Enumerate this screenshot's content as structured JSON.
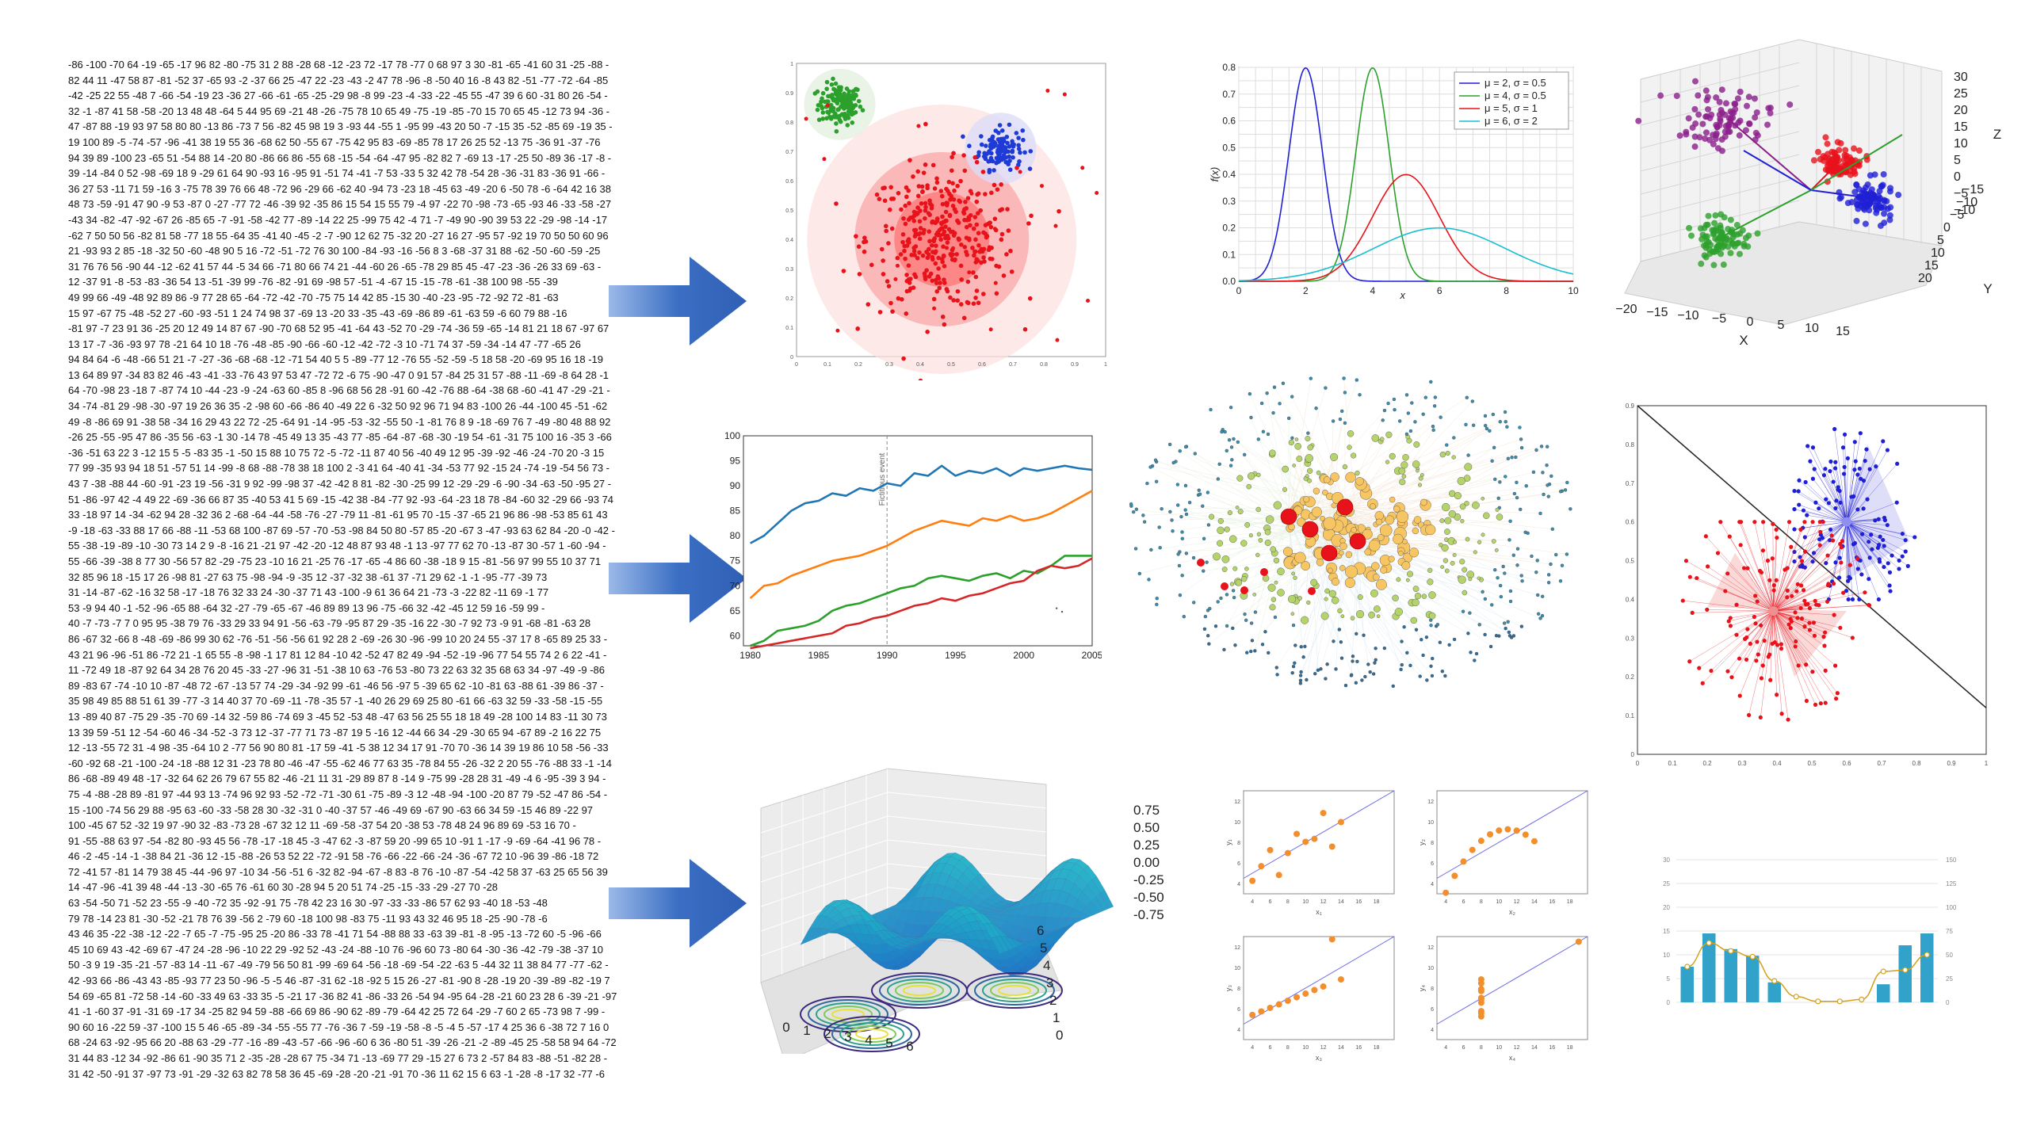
{
  "colors": {
    "arrow": "#3b6fc4",
    "blue": "#1f77b4",
    "orange": "#ff7f0e",
    "green": "#2ca02c",
    "red": "#d62728",
    "cyan": "#17becf",
    "teal": "#31a2c9"
  },
  "icons": [
    "arrow-right-icon",
    "arrow-right-icon",
    "arrow-right-icon"
  ],
  "text_block": {
    "lines": [
      "-86 -100 -70 64 -19 -65 -17 96 82 -80 -75 31 2 88 -28 68 -12 -23 72 -17 78 -77 0 68 97 3 30 -81 -65 -41 60 31 -25 -88 -",
      "82 44 11 -47 58 87 -81 -52 37 -65 93 -2 -37 66 25 -47 22 -23 -43 -2 47 78 -96 -8 -50 40 16 -8 43 82 -51 -77 -72 -64 -85",
      "-42 -25 22 55 -48 7 -66 -54 -19 23 -36 27 -66 -61 -65 -25 -29 98 -8 99 -23 -4 -33 -22 -45 55 -47 39 6 60 -31 80 26 -54 -",
      "32 -1 -87 41 58 -58 -20 13 48 48 -64 5 44 95 69 -21 48 -26 -75 78 10 65 49 -75 -19 -85 -70 15 70 65 45 -12 73 94 -36 -",
      "47 -87 88 -19 93 97 58 80 80 -13 86 -73 7 56 -82 45 98 19 3 -93 44 -55 1 -95 99 -43 20 50 -7 -15 35 -52 -85 69 -19 35 -",
      "19 100 89 -5 -74 -57 -96 -41 38 19 55 36 -68 62 50 -55 67 -75 42 95 83 -69 -85 78 17 26 25 52 -13 75 -36 91 -37 -76",
      "94 39 89 -100 23 -65 51 -54 88 14 -20 80 -86 66 86 -55 68 -15 -54 -64 -47 95 -82 82 7 -69 13 -17 -25 50 -89 36 -17 -8 -",
      "39 -14 -84 0 52 -98 -69 18 9 -29 61 64 90 -93 16 -95 91 -51 74 -41 -7 53 -33 5 32 42 78 -54 28 -36 -31 83 -36 91 -66 -",
      "36 27 53 -11 71 59 -16 3 -75 78 39 76 66 48 -72 96 -29 66 -62 40 -94 73 -23 18 -45 63 -49 -20 6 -50 78 -6 -64 42 16 38",
      "48 73 -59 -91 47 90 -9 53 -87 0 -27 -77 72 -46 -39 92 -35 86 15 54 15 55 79 -4 97 -22 70 -98 -73 -65 -93 46 -33 -58 -27",
      "-43 34 -82 -47 -92 -67 26 -85 65 -7 -91 -58 -42 77 -89 -14 22 25 -99 75 42 -4 71 -7 -49 90 -90 39 53 22 -29 -98 -14 -17",
      "-62 7 50 50 56 -82 81 58 -77 18 55 -64 35 -41 40 -45 -2 -7 -90 12 62 75 -32 20 -27 16 27 -95 57 -92 19 70 50 50 60 96",
      "21 -93 93 2 85 -18 -32 50 -60 -48 90 5 16 -72 -51 -72 76 30 100 -84 -93 -16 -56 8 3 -68 -37 31 88 -62 -50 -60 -59 -25",
      "31 76 76 56 -90 44 -12 -62 41 57 44 -5 34 66 -71 80 66 74 21 -44 -60 26 -65 -78 29 85 45 -47 -23 -36 -26 33 69 -63 -",
      "12 -37 91 -8 -53 -83 -36 54 13 -51 -39 99 -76 -82 -91 69 -98 57 -51 -4 -67 15 -15 -78 -61 -38 100 98 -55 -39",
      "49 99 66 -49 -48 92 89 86 -9 77 28 65 -64 -72 -42 -70 -75 75 14 42 85 -15 30 -40 -23 -95 -72 -92 72 -81 -63",
      "15 97 -67 75 -48 -52 27 -60 -93 -51 1 24 74 98 37 -69 13 -20 33 -35 -43 -69 -86 89 -61 -63 59 -6 60 79 88 -16",
      "-81 97 -7 23 91 36 -25 20 12 49 14 87 67 -90 -70 68 52 95 -41 -64 43 -52 70 -29 -74 -36 59 -65 -14 81 21 18 67 -97 67",
      "13 17 -7 -36 -93 97 78 -21 64 10 18 -76 -48 -85 -90 -66 -60 -12 -42 -72 -3 10 -71 74 37 -59 -34 -14 47 -77 -65 26",
      "94 84 64 -6 -48 -66 51 21 -7 -27 -36 -68 -68 -12 -71 54 40 5 5 -89 -77 12 -76 55 -52 -59 -5 18 58 -20 -69 95 16 18 -19",
      "13 64 89 97 -34 83 82 46 -43 -41 -33 -76 43 97 53 47 -72 72 -6 75 -90 -47 0 91 57 -84 25 31 57 -88 -11 -69 -8 64 28 -1",
      "64 -70 -98 23 -18 7 -87 74 10 -44 -23 -9 -24 -63 60 -85 8 -96 68 56 28 -91 60 -42 -76 88 -64 -38 68 -60 -41 47 -29 -21 -",
      "34 -74 -81 29 -98 -30 -97 19 26 36 35 -2 -98 60 -66 -86 40 -49 22 6 -32 50 92 96 71 94 83 -100 26 -44 -100 45 -51 -62",
      "49 -8 -86 69 91 -38 58 -34 16 29 43 22 72 -25 -64 91 -14 -95 -53 -32 -55 50 -1 -81 76 8 9 -18 -69 76 7 -49 -80 48 88 92",
      "-26 25 -55 -95 47 86 -35 56 -63 -1 30 -14 78 -45 49 13 35 -43 77 -85 -64 -87 -68 -30 -19 54 -61 -31 75 100 16 -35 3 -66",
      "-36 -51 63 22 3 -12 15 5 -5 -83 35 -1 -50 15 88 10 75 72 -5 -72 -11 87 40 56 -40 49 12 95 -39 -92 -46 -24 -70 20 -3 15",
      "77 99 -35 93 94 18 51 -57 51 14 -99 -8 68 -88 -78 38 18 100 2 -3 41 64 -40 41 -34 -53 77 92 -15 24 -74 -19 -54 56 73 -",
      "43 7 -38 -88 44 -60 -91 -23 19 -56 -31 9 92 -99 -98 37 -42 -42 8 81 -82 -30 -25 99 12 -29 -29 -6 -90 -34 -63 -50 -95 27 -",
      "51 -86 -97 42 -4 49 22 -69 -36 66 87 35 -40 53 41 5 69 -15 -42 38 -84 -77 92 -93 -64 -23 18 78 -84 -60 32 -29 66 -93 74",
      "33 -18 97 14 -34 -62 94 28 -32 36 2 -68 -64 -44 -58 -76 -27 -79 11 -81 -61 95 70 -15 -37 -65 21 96 86 -98 -53 85 61 43",
      "-9 -18 -63 -33 88 17 66 -88 -11 -53 68 100 -87 69 -57 -70 -53 -98 84 50 80 -57 85 -20 -67 3 -47 -93 63 62 84 -20 -0 -42 -",
      "55 -38 -19 -89 -10 -30 73 14 2 9 -8 -16 21 -21 97 -42 -20 -12 48 87 93 48 -1 13 -97 77 62 70 -13 -87 30 -57 1 -60 -94 -",
      "55 -66 -39 -38 8 77 30 -56 57 82 -29 -75 23 -10 16 21 -25 76 -17 -65 -4 86 60 -38 -18 9 15 -81 -56 97 99 55 10 37 71",
      "32 85 96 18 -15 17 26 -98 81 -27 63 75 -98 -94 -9 -35 12 -37 -32 38 -61 37 -71 29 62 -1 -1 -95 -77 -39 73",
      "31 -14 -87 -62 -16 32 58 -17 -18 76 32 33 24 -30 -37 71 43 -100 -9 61 36 64 21 -73 -3 -22 82 -11 69 -1 77",
      "53 -9 94 40 -1 -52 -96 -65 88 -64 32 -27 -79 -65 -67 -46 89 89 13 96 -75 -66 32 -42 -45 12 59 16 -59 99 -",
      "40 -7 -73 -7 7 0 95 95 -38 79 76 -33 29 33 94 91 -56 -63 -79 -95 87 29 -35 -16 22 -30 -7 92 73 -9 91 -68 -81 -63 28",
      "86 -67 32 -66 8 -48 -69 -86 99 30 62 -76 -51 -56 -56 61 92 28 2 -69 -26 30 -96 -99 10 20 24 55 -37 17 8 -65 89 25 33 -",
      "43 21 96 -96 -51 86 -72 21 -1 65 55 -8 -98 -1 17 81 12 84 -10 42 -52 47 82 49 -94 -52 -19 -96 77 54 55 74 2 6 22 -41 -",
      "11 -72 49 18 -87 92 64 34 28 76 20 45 -33 -27 -96 31 -51 -38 10 63 -76 53 -80 73 22 63 32 35 68 63 34 -97 -49 -9 -86",
      "89 -83 67 -74 -10 10 -87 -48 72 -67 -13 57 74 -29 -34 -92 99 -61 -46 56 -97 5 -39 65 62 -10 -81 63 -88 61 -39 86 -37 -",
      "35 98 49 85 88 51 61 39 -77 -3 14 40 37 70 -69 -11 -78 -35 57 -1 -40 26 29 69 25 80 -61 66 -63 32 59 -33 -58 -15 -55",
      "13 -89 40 87 -75 29 -35 -70 69 -14 32 -59 86 -74 69 3 -45 52 -53 48 -47 63 56 25 55 18 18 49 -28 100 14 83 -11 30 73",
      "13 39 59 -51 12 -54 -60 46 -34 -52 -3 73 12 -37 -77 71 73 -87 19 5 -16 12 -44 66 34 -29 -30 65 94 -67 89 -2 16 22 75",
      "12 -13 -55 72 31 -4 98 -35 -64 10 2 -77 56 90 80 81 -17 59 -41 -5 38 12 34 17 91 -70 70 -36 14 39 19 86 10 58 -56 -33",
      "-60 -92 68 -21 -100 -24 -18 -88 12 31 -23 78 80 -46 -47 -55 -62 46 77 63 35 -78 84 55 -26 -32 2 20 55 -76 -88 33 -1 -14",
      "86 -68 -89 49 48 -17 -32 64 62 26 79 67 55 82 -46 -21 11 31 -29 89 87 8 -14 9 -75 99 -28 28 31 -49 -4 6 -95 -39 3 94 -",
      "75 -4 -88 -28 89 -81 97 -44 93 13 -74 96 92 93 -52 -72 -71 -30 61 -75 -89 -3 12 -48 -94 -100 -20 87 79 -52 -47 86 -54 -",
      "15 -100 -74 56 29 88 -95 63 -60 -33 -58 28 30 -32 -31 0 -40 -37 57 -46 -49 69 -67 90 -63 66 34 59 -15 46 89 -22 97",
      "100 -45 67 52 -32 19 97 -90 32 -83 -73 28 -67 32 12 11 -69 -58 -37 54 20 -38 53 -78 48 24 96 89 69 -53 16 70 -",
      "91 -55 -88 63 97 -54 -82 80 -93 45 56 -78 -17 -18 45 -3 -47 62 -3 -87 59 20 -99 65 10 -91 1 -17 -9 -69 -64 -41 96 78 -",
      "46 -2 -45 -14 -1 -38 84 21 -36 12 -15 -88 -26 53 52 22 -72 -91 58 -76 -66 -22 -66 -24 -36 -67 72 10 -96 39 -86 -18 72",
      "72 -41 57 -81 14 79 38 45 -44 -96 97 -10 34 -56 -51 6 -32 82 -94 -67 -8 83 -8 76 -10 -87 -54 -42 58 37 -63 25 65 56 39",
      "14 -47 -96 -41 39 48 -44 -13 -30 -65 76 -61 60 30 -28 94 5 20 51 74 -25 -15 -33 -29 -27 70 -28",
      "63 -54 -50 71 -52 23 -55 -9 -40 -72 35 -92 -91 75 -78 42 23 16 30 -97 -33 -33 -86 57 62 93 -40 18 -53 -48",
      "79 78 -14 23 81 -30 -52 -21 78 76 39 -56 2 -79 60 -18 100 98 -83 75 -11 93 43 32 46 95 18 -25 -90 -78 -6",
      "43 46 35 -22 -38 -12 -22 -7 65 -7 -75 -95 25 -20 86 -33 78 -41 71 54 -88 88 33 -63 39 -81 -8 -95 -13 -72 60 -5 -96 -66",
      "45 10 69 43 -42 -69 67 -47 24 -28 -96 -10 22 29 -92 52 -43 -24 -88 -10 76 -96 60 73 -80 64 -30 -36 -42 -79 -38 -37 10",
      "50 -3 9 19 -35 -21 -57 -83 14 -11 -67 -49 -79 56 50 81 -99 -69 64 -56 -18 -69 -54 -22 -63 5 -44 32 11 38 84 77 -77 -62 -",
      "42 -93 66 -86 -43 43 -85 -93 77 23 50 -96 -5 -5 46 -87 -31 62 -18 -92 5 15 26 -27 -81 -90 8 -28 -19 20 -39 -89 -82 -19 7",
      "54 69 -65 81 -72 58 -14 -60 -33 49 63 -33 35 -5 -21 17 -36 82 41 -86 -33 26 -54 94 -95 64 -28 -21 60 23 28 6 -39 -21 -97",
      "41 -1 -60 37 -91 -31 69 -17 34 -25 82 94 59 -88 -66 69 86 -90 62 -89 -79 -64 42 25 72 64 -29 -7 60 2 65 -73 98 7 -99 -",
      "90 60 16 -22 59 -37 -100 15 5 46 -65 -89 -34 -55 -55 77 -76 -36 7 -59 -19 -58 -8 -5 -4 5 -57 -17 4 25 36 6 -38 72 7 16 0",
      "68 -24 63 -92 -95 66 20 -88 63 -29 -77 -16 -89 -43 -57 -66 -96 -60 6 36 -80 51 -39 -26 -21 -2 -89 -45 25 -58 58 94 64 -72",
      "31 44 83 -12 34 -92 -86 61 -90 35 71 2 -35 -28 -28 67 75 -34 71 -13 -69 77 29 -15 27 6 73 2 -57 84 83 -88 -51 -82 28 -",
      "31 42 -50 -91 37 -97 73 -91 -29 -32 63 82 78 58 36 45 -69 -28 -20 -21 -91 70 -36 11 62 15 6 63 -1 -28 -8 -17 32 -77 -6"
    ]
  },
  "chart_data": [
    {
      "type": "scatter",
      "title": "",
      "xlim": [
        0,
        1
      ],
      "ylim": [
        0,
        1
      ],
      "x_ticks": [
        "0",
        "0.1",
        "0.2",
        "0.3",
        "0.4",
        "0.5",
        "0.6",
        "0.7",
        "0.8",
        "0.9",
        "1"
      ],
      "y_ticks": [
        "0",
        "0.1",
        "0.2",
        "0.3",
        "0.4",
        "0.5",
        "0.6",
        "0.7",
        "0.8",
        "0.9",
        "1"
      ],
      "clusters": [
        {
          "center": [
            0.14,
            0.86
          ],
          "spread": 0.035,
          "count": 140,
          "color": "#2ca02c"
        },
        {
          "center": [
            0.66,
            0.71
          ],
          "spread": 0.035,
          "count": 120,
          "color": "#1f3bd6"
        },
        {
          "center": [
            0.47,
            0.4
          ],
          "spread": 0.12,
          "count": 360,
          "color": "#e8121b"
        }
      ]
    },
    {
      "type": "line",
      "x_ticks": [
        "1980",
        "1985",
        "1990",
        "1995",
        "2000",
        "2005"
      ],
      "y_ticks": [
        "60",
        "65",
        "70",
        "75",
        "80",
        "85",
        "90",
        "95",
        "100"
      ],
      "xlim": [
        1979.5,
        2005
      ],
      "ylim": [
        58,
        100
      ],
      "annotation": {
        "x": 1990,
        "label": "Fictitious event"
      },
      "x": [
        1980,
        1981,
        1982,
        1983,
        1984,
        1985,
        1986,
        1987,
        1988,
        1989,
        1990,
        1991,
        1992,
        1993,
        1994,
        1995,
        1996,
        1997,
        1998,
        1999,
        2000,
        2001,
        2002,
        2003,
        2004,
        2005
      ],
      "series": [
        {
          "color": "#1f77b4",
          "values": [
            78.5,
            80,
            82.5,
            85,
            86.5,
            87,
            88.5,
            88,
            89.5,
            89,
            90.5,
            90,
            92.5,
            92,
            94,
            92,
            93,
            92.5,
            93.5,
            92,
            93.5,
            93,
            93.5,
            94,
            93.5,
            93.2
          ]
        },
        {
          "color": "#ff7f0e",
          "values": [
            67.5,
            70,
            70.5,
            72,
            73,
            74,
            75,
            75.5,
            76,
            77,
            78,
            79.5,
            81,
            82,
            83,
            82.5,
            82,
            83.5,
            83,
            84,
            83,
            83.5,
            84.5,
            86,
            87.5,
            89
          ]
        },
        {
          "color": "#2ca02c",
          "values": [
            58,
            59,
            61,
            61.5,
            62,
            63,
            65,
            66,
            66.5,
            67.5,
            68.5,
            69.5,
            70,
            71.5,
            72,
            71.5,
            71,
            72,
            72.5,
            71.5,
            73,
            72.5,
            74,
            76,
            76,
            76
          ]
        },
        {
          "color": "#d62728",
          "values": [
            57.5,
            58,
            58.5,
            59,
            59.5,
            60,
            60.5,
            62,
            62.5,
            63.5,
            64,
            65,
            66,
            66.5,
            67.5,
            67,
            68,
            68.5,
            69.5,
            70.5,
            71,
            73,
            74,
            73.5,
            74,
            75.5
          ]
        }
      ]
    },
    {
      "type": "surface3d",
      "x_ticks": [
        "0",
        "1",
        "2",
        "3",
        "4",
        "5",
        "6"
      ],
      "y_ticks": [
        "0",
        "1",
        "2",
        "3",
        "4",
        "5",
        "6"
      ],
      "z_ticks": [
        "0.75",
        "0.50",
        "0.25",
        "0.00",
        "-0.25",
        "-0.50",
        "-0.75"
      ]
    },
    {
      "type": "line",
      "x_ticks": [
        "0",
        "2",
        "4",
        "6",
        "8",
        "10"
      ],
      "y_ticks": [
        "0.0",
        "0.1",
        "0.2",
        "0.3",
        "0.4",
        "0.5",
        "0.6",
        "0.7",
        "0.8"
      ],
      "xlim": [
        0,
        10
      ],
      "ylim": [
        0,
        0.8
      ],
      "xlabel": "x",
      "ylabel": "f(x)",
      "series": [
        {
          "name": "μ = 2, σ = 0.5",
          "mu": 2,
          "sigma": 0.5,
          "color": "#1f1fd6"
        },
        {
          "name": "μ = 4, σ = 0.5",
          "mu": 4,
          "sigma": 0.5,
          "color": "#2ca02c"
        },
        {
          "name": "μ = 5, σ = 1",
          "mu": 5,
          "sigma": 1,
          "color": "#e8121b"
        },
        {
          "name": "μ = 6, σ = 2",
          "mu": 6,
          "sigma": 2,
          "color": "#17becf"
        }
      ]
    },
    {
      "type": "network",
      "nodes": 650
    },
    {
      "type": "scatter3d",
      "x_ticks": [
        "−20",
        "−15",
        "−10",
        "−5",
        "0",
        "5",
        "10",
        "15"
      ],
      "y_ticks": [
        "20",
        "15",
        "10",
        "5",
        "0",
        "−5",
        "−10",
        "−15"
      ],
      "z_ticks": [
        "30",
        "25",
        "20",
        "15",
        "10",
        "5",
        "0",
        "−5",
        "−10"
      ],
      "xlabel": "X",
      "ylabel": "Y",
      "zlabel": "Z"
    },
    {
      "type": "scatter",
      "x_ticks": [
        "0",
        "0.1",
        "0.2",
        "0.3",
        "0.4",
        "0.5",
        "0.6",
        "0.7",
        "0.8",
        "0.9",
        "1"
      ],
      "y_ticks": [
        "0.9",
        "0.8",
        "0.7",
        "0.6",
        "0.5",
        "0.4",
        "0.3",
        "0.2",
        "0.1",
        "0"
      ],
      "xlim": [
        0,
        1
      ],
      "ylim": [
        0,
        0.9
      ],
      "clusters": [
        {
          "center": [
            0.6,
            0.6
          ],
          "count": 130,
          "color": "#1f1fd6"
        },
        {
          "center": [
            0.39,
            0.37
          ],
          "count": 150,
          "color": "#e8121b"
        }
      ]
    },
    {
      "type": "scatter",
      "title": "",
      "panels": [
        {
          "ylabel": "y₁",
          "xlabel": "x₁",
          "x": [
            10,
            8,
            13,
            9,
            11,
            14,
            6,
            4,
            12,
            7,
            5
          ],
          "y": [
            8.04,
            6.95,
            7.58,
            8.81,
            8.33,
            9.96,
            7.24,
            4.26,
            10.84,
            4.82,
            5.68
          ]
        },
        {
          "ylabel": "y₂",
          "xlabel": "x₂",
          "x": [
            10,
            8,
            13,
            9,
            11,
            14,
            6,
            4,
            12,
            7,
            5
          ],
          "y": [
            9.14,
            8.14,
            8.74,
            8.77,
            9.26,
            8.1,
            6.13,
            3.1,
            9.13,
            7.26,
            4.74
          ]
        },
        {
          "ylabel": "y₃",
          "xlabel": "x₃",
          "x": [
            10,
            8,
            13,
            9,
            11,
            14,
            6,
            4,
            12,
            7,
            5
          ],
          "y": [
            7.46,
            6.77,
            12.74,
            7.11,
            7.81,
            8.84,
            6.08,
            5.39,
            8.15,
            6.42,
            5.73
          ]
        },
        {
          "ylabel": "y₄",
          "xlabel": "x₄",
          "x": [
            8,
            8,
            8,
            8,
            8,
            8,
            8,
            19,
            8,
            8,
            8
          ],
          "y": [
            6.58,
            5.76,
            7.71,
            8.84,
            8.47,
            7.04,
            5.25,
            12.5,
            5.56,
            7.91,
            6.89
          ]
        }
      ],
      "x_ticks": [
        "4",
        "6",
        "8",
        "10",
        "12",
        "14",
        "16",
        "18"
      ],
      "y_ticks": [
        "4",
        "6",
        "8",
        "10",
        "12"
      ],
      "xlim": [
        3,
        20
      ],
      "ylim": [
        3,
        13
      ]
    },
    {
      "type": "bar",
      "y_ticks_left": [
        "0",
        "5",
        "10",
        "15",
        "20",
        "25",
        "30"
      ],
      "y_ticks_right": [
        "0",
        "25",
        "50",
        "75",
        "100",
        "125",
        "150"
      ],
      "ylim": [
        0,
        30
      ],
      "values": [
        7.5,
        14.5,
        11.2,
        9.8,
        4.2,
        0,
        0,
        0,
        0,
        3.8,
        12,
        14.5
      ],
      "line_values": [
        7.5,
        12.5,
        10.8,
        9.6,
        4.5,
        1.2,
        0.2,
        0.2,
        0.6,
        6.5,
        6.8,
        10
      ],
      "bar_color": "#31a2c9",
      "line_color": "#d4a017"
    }
  ]
}
